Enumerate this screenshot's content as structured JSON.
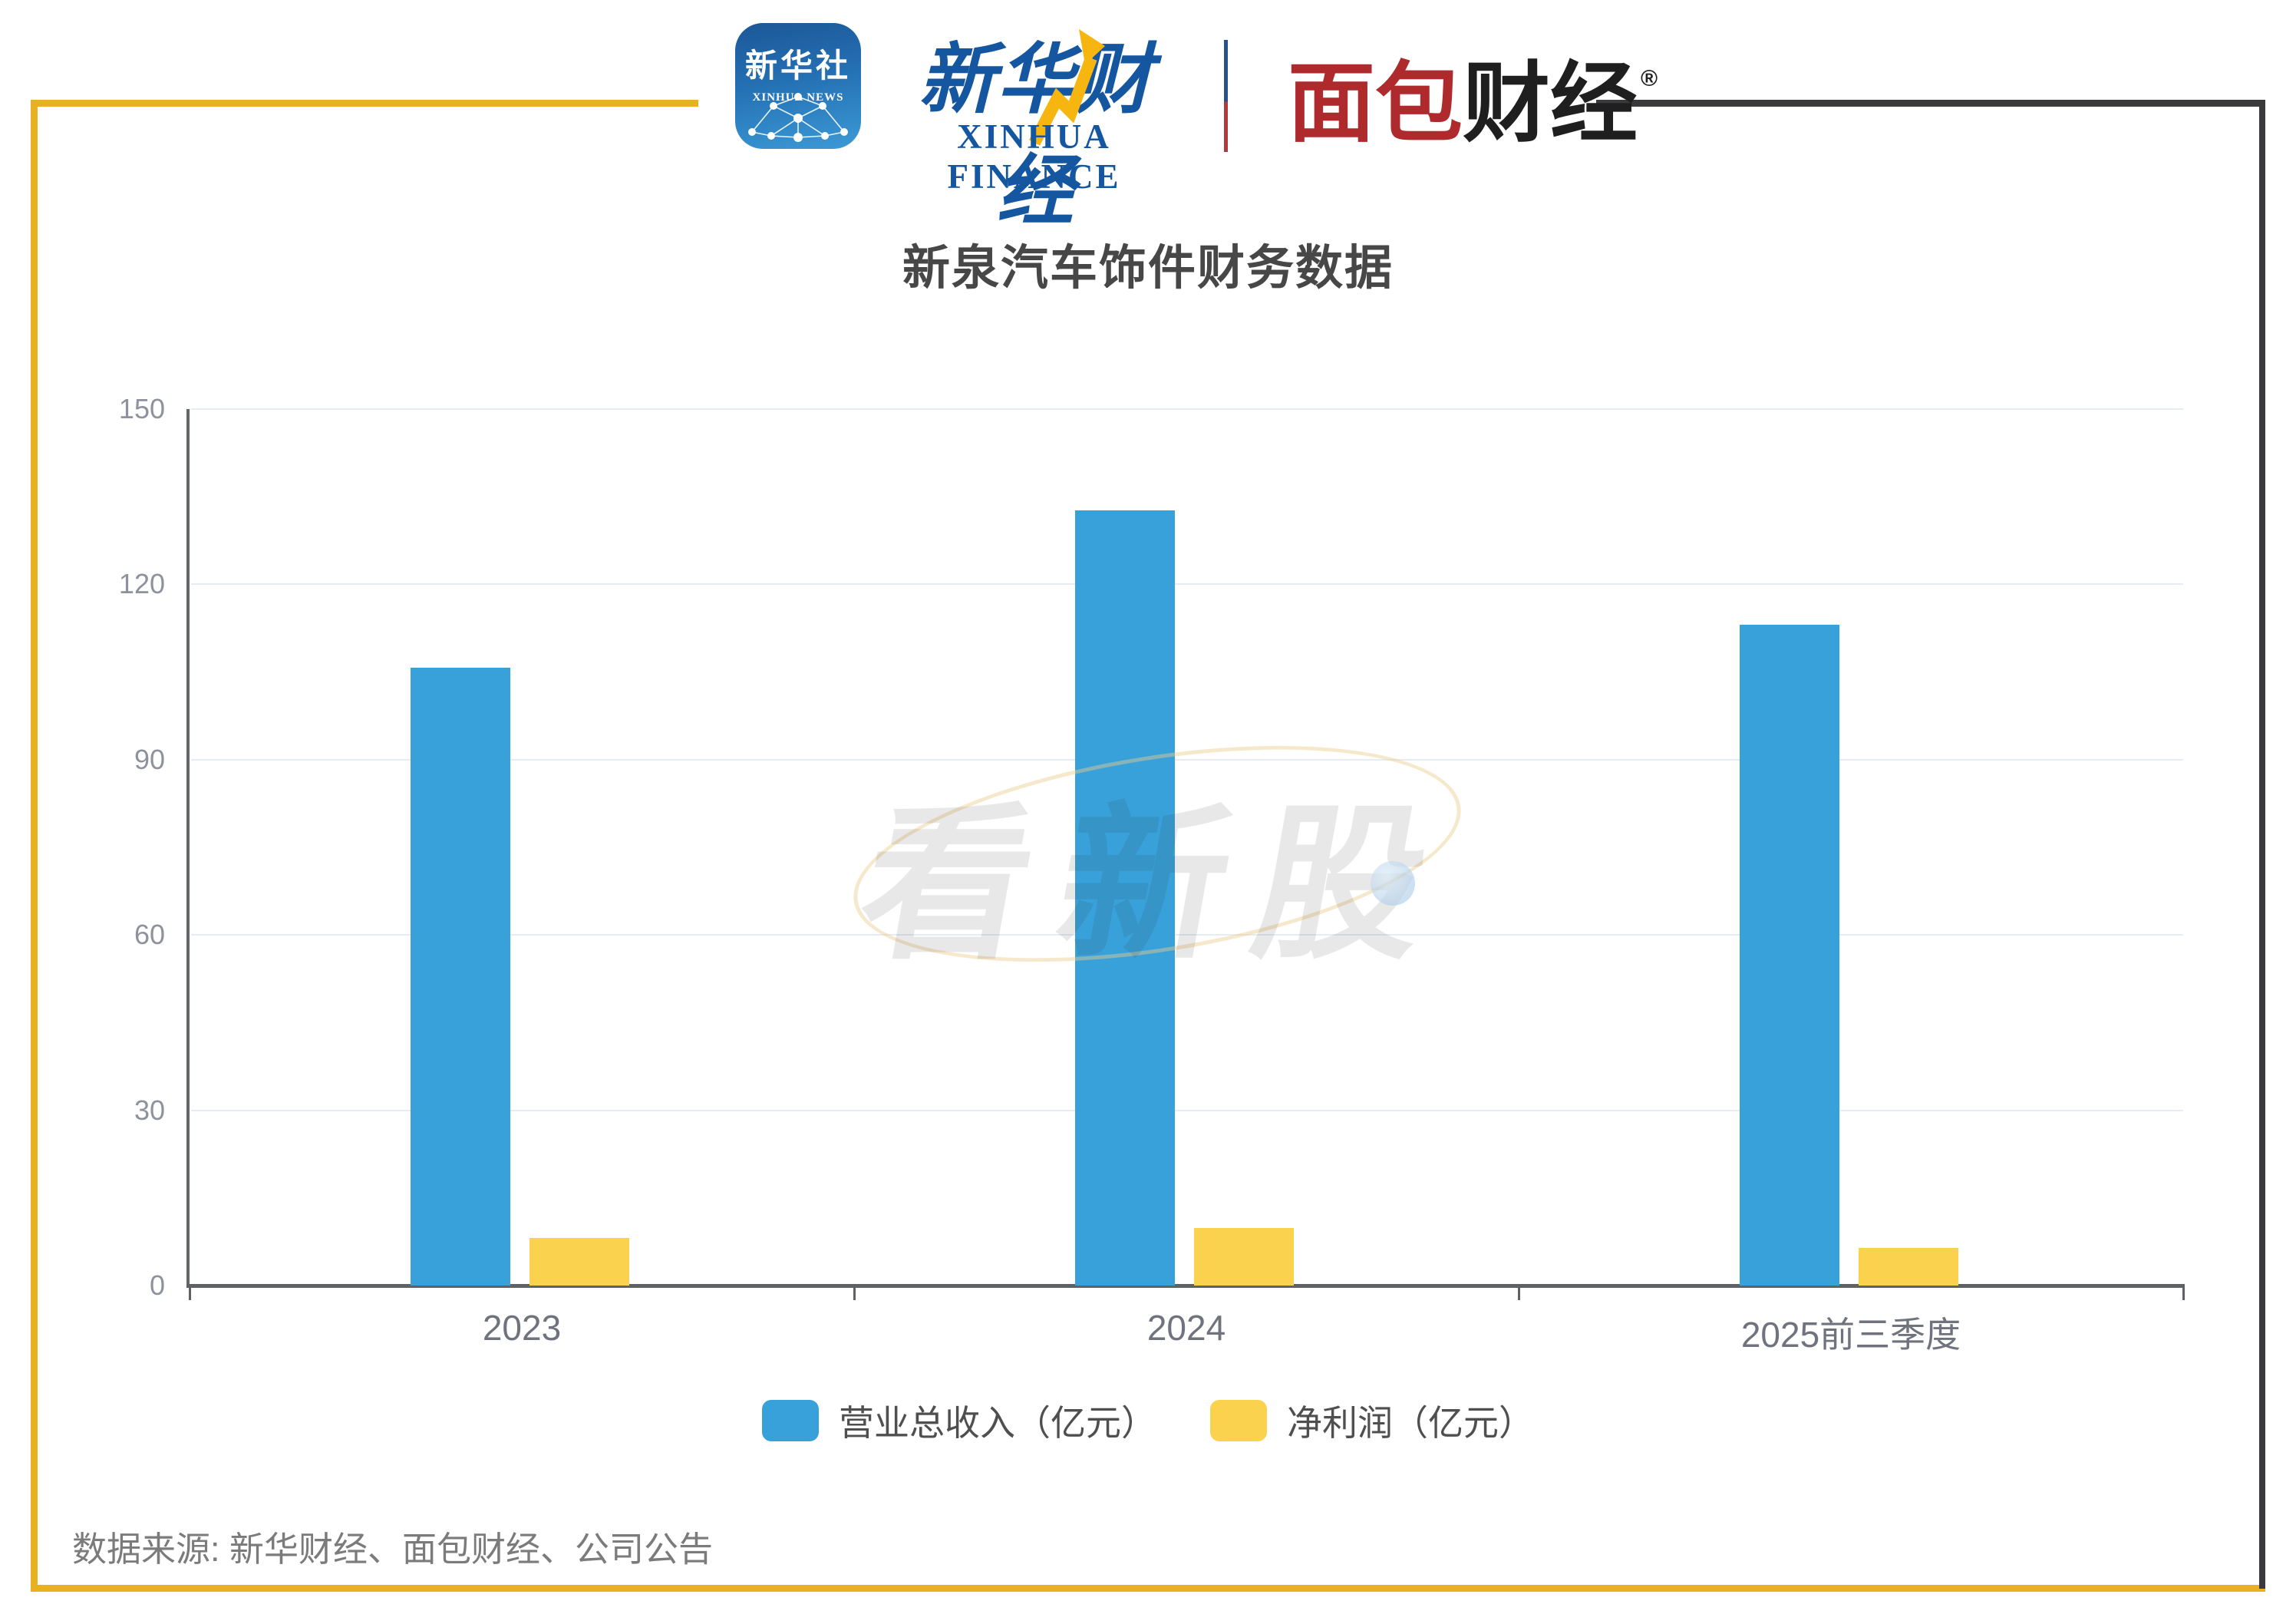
{
  "header": {
    "xinhua_news_icon": {
      "line1": "新华社",
      "line2": "XINHUA NEWS"
    },
    "xinhua_finance": {
      "cn": "新华财经",
      "en": "XINHUA FINANCE"
    },
    "mianbao": {
      "part1": "面包",
      "part2": "财经",
      "reg": "®"
    }
  },
  "title": "新泉汽车饰件财务数据",
  "watermark": {
    "text": "看新股"
  },
  "source": "数据来源: 新华财经、面包财经、公司公告",
  "chart_data": {
    "type": "bar",
    "title": "新泉汽车饰件财务数据",
    "categories": [
      "2023",
      "2024",
      "2025前三季度"
    ],
    "series": [
      {
        "name": "营业总收入（亿元）",
        "color": "#38A1DA",
        "values": [
          105.7,
          132.6,
          113.1
        ]
      },
      {
        "name": "净利润（亿元）",
        "color": "#FBD24D",
        "values": [
          8.1,
          9.8,
          6.4
        ]
      }
    ],
    "ylabel": "",
    "xlabel": "",
    "ylim": [
      0,
      150
    ],
    "yticks": [
      0,
      30,
      60,
      90,
      120,
      150
    ],
    "grid": true,
    "legend_position": "bottom"
  },
  "colors": {
    "frame_yellow": "#E9B122",
    "frame_dark": "#3A3A3C",
    "bar_blue": "#38A1DA",
    "bar_yellow": "#FBD24D",
    "gridline": "#E6EBF5",
    "axis": "#5E6166"
  }
}
